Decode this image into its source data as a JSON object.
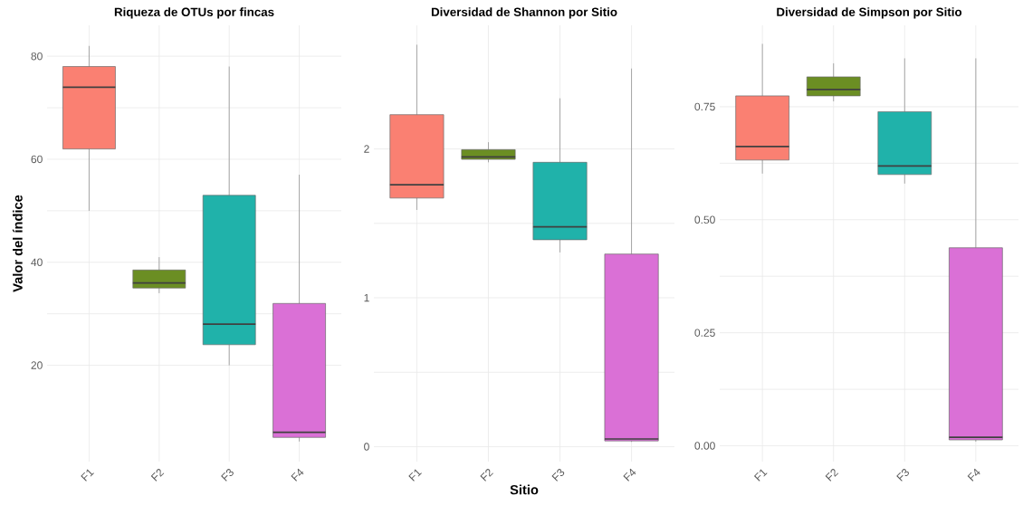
{
  "chart_data": [
    {
      "type": "box",
      "title": "Riqueza de OTUs por fincas",
      "ylabel": "Valor del índice",
      "categories": [
        "F1",
        "F2",
        "F3",
        "F4"
      ],
      "colors": [
        "#fa8072",
        "#6b8e23",
        "#20b2aa",
        "#da70d6"
      ],
      "boxes": [
        {
          "low": 50,
          "q1": 62,
          "median": 74,
          "q3": 78,
          "high": 82
        },
        {
          "low": 34,
          "q1": 35,
          "median": 36,
          "q3": 38.5,
          "high": 41
        },
        {
          "low": 20,
          "q1": 24,
          "median": 28,
          "q3": 53,
          "high": 78
        },
        {
          "low": 5.2,
          "q1": 6,
          "median": 7,
          "q3": 32,
          "high": 57
        }
      ],
      "ylim": [
        1.3,
        86
      ],
      "yticks": [
        20,
        40,
        60,
        80
      ],
      "grid": true
    },
    {
      "type": "box",
      "title": "Diversidad de Shannon por Sitio",
      "xlabel": "Sitio",
      "categories": [
        "F1",
        "F2",
        "F3",
        "F4"
      ],
      "colors": [
        "#fa8072",
        "#6b8e23",
        "#20b2aa",
        "#da70d6"
      ],
      "boxes": [
        {
          "low": 1.59,
          "q1": 1.67,
          "median": 1.76,
          "q3": 2.23,
          "high": 2.7
        },
        {
          "low": 1.91,
          "q1": 1.93,
          "median": 1.946,
          "q3": 1.995,
          "high": 2.045
        },
        {
          "low": 1.305,
          "q1": 1.39,
          "median": 1.476,
          "q3": 1.91,
          "high": 2.34
        },
        {
          "low": 0.032,
          "q1": 0.039,
          "median": 0.052,
          "q3": 1.294,
          "high": 2.54
        }
      ],
      "ylim": [
        -0.1,
        2.83
      ],
      "yticks": [
        0,
        1,
        2
      ],
      "grid": true
    },
    {
      "type": "box",
      "title": "Diversidad de Simpson por Sitio",
      "categories": [
        "F1",
        "F2",
        "F3",
        "F4"
      ],
      "colors": [
        "#fa8072",
        "#6b8e23",
        "#20b2aa",
        "#da70d6"
      ],
      "boxes": [
        {
          "low": 0.602,
          "q1": 0.632,
          "median": 0.662,
          "q3": 0.774,
          "high": 0.889
        },
        {
          "low": 0.762,
          "q1": 0.774,
          "median": 0.788,
          "q3": 0.816,
          "high": 0.846
        },
        {
          "low": 0.58,
          "q1": 0.6,
          "median": 0.619,
          "q3": 0.739,
          "high": 0.857
        },
        {
          "low": 0.009,
          "q1": 0.013,
          "median": 0.019,
          "q3": 0.438,
          "high": 0.857
        }
      ],
      "ylim": [
        -0.035,
        0.93
      ],
      "yticks": [
        {
          "value": 0,
          "label": "0.00"
        },
        {
          "value": 0.25,
          "label": "0.25"
        },
        {
          "value": 0.5,
          "label": "0.50"
        },
        {
          "value": 0.75,
          "label": "0.75"
        }
      ],
      "grid": true
    }
  ]
}
